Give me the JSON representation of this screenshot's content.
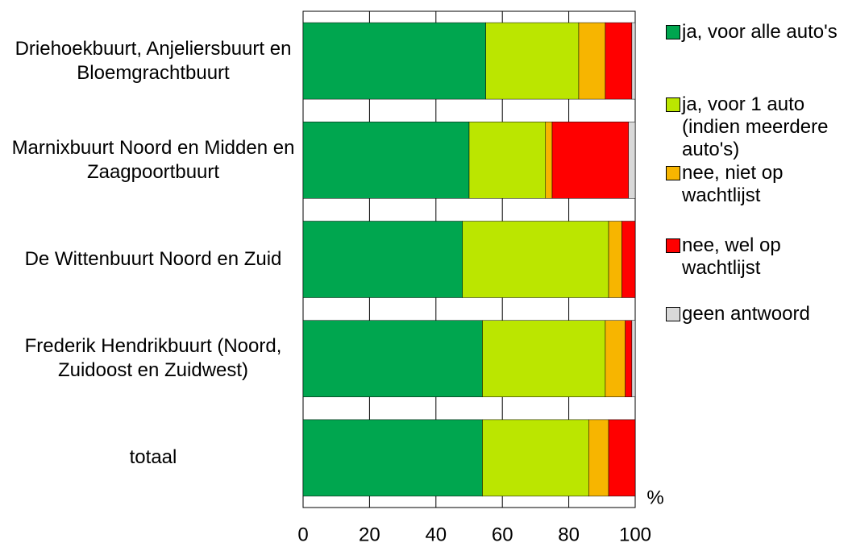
{
  "chart_data": {
    "type": "stacked-barh",
    "categories": [
      "Driehoekbuurt, Anjeliersbuurt en Bloemgrachtbuurt",
      "Marnixbuurt Noord en Midden en Zaagpoortbuurt",
      "De Wittenbuurt Noord en Zuid",
      "Frederik Hendrikbuurt (Noord, Zuidoost en Zuidwest)",
      "totaal"
    ],
    "series": [
      {
        "name": "ja, voor alle auto's",
        "color": "#00a64f",
        "values": [
          55,
          50,
          48,
          54,
          54
        ]
      },
      {
        "name": "ja, voor 1 auto (indien meerdere auto's)",
        "color": "#bbe600",
        "values": [
          28,
          23,
          44,
          37,
          32
        ]
      },
      {
        "name": "nee, niet op wachtlijst",
        "color": "#f7b500",
        "values": [
          8,
          2,
          4,
          6,
          6
        ]
      },
      {
        "name": "nee, wel op wachtlijst",
        "color": "#ff0000",
        "values": [
          8,
          23,
          4,
          2,
          8
        ]
      },
      {
        "name": "geen antwoord",
        "color": "#d9d9d9",
        "values": [
          1,
          2,
          0,
          1,
          0
        ]
      }
    ],
    "xlabel": "%",
    "xlim": [
      0,
      100
    ],
    "xticks": [
      0,
      20,
      40,
      60,
      80,
      100
    ],
    "grid": true,
    "legend": "right"
  }
}
